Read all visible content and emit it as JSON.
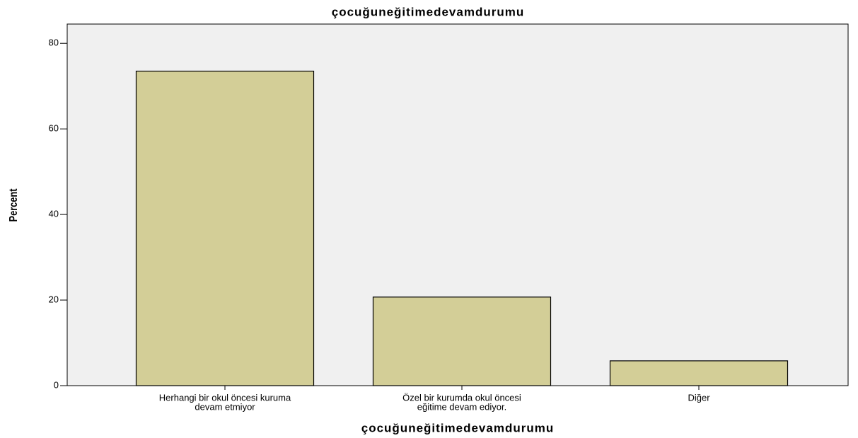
{
  "chart_data": {
    "type": "bar",
    "title": "çocuğuneğitimedevamdurumu",
    "x_label": "çocuğuneğitimedevamdurumu",
    "y_label": "Percent",
    "categories": [
      [
        "Herhangi bir okul öncesi kuruma",
        "devam etmiyor"
      ],
      [
        "Özel bir kurumda okul öncesi",
        "eğitime devam ediyor."
      ],
      [
        "Diğer"
      ]
    ],
    "values": [
      73.5,
      20.7,
      5.8
    ],
    "color": "#d3ce97",
    "ylim": [
      0,
      84.5
    ],
    "yticks": [
      0,
      20,
      40,
      60,
      80
    ],
    "grid": false
  }
}
